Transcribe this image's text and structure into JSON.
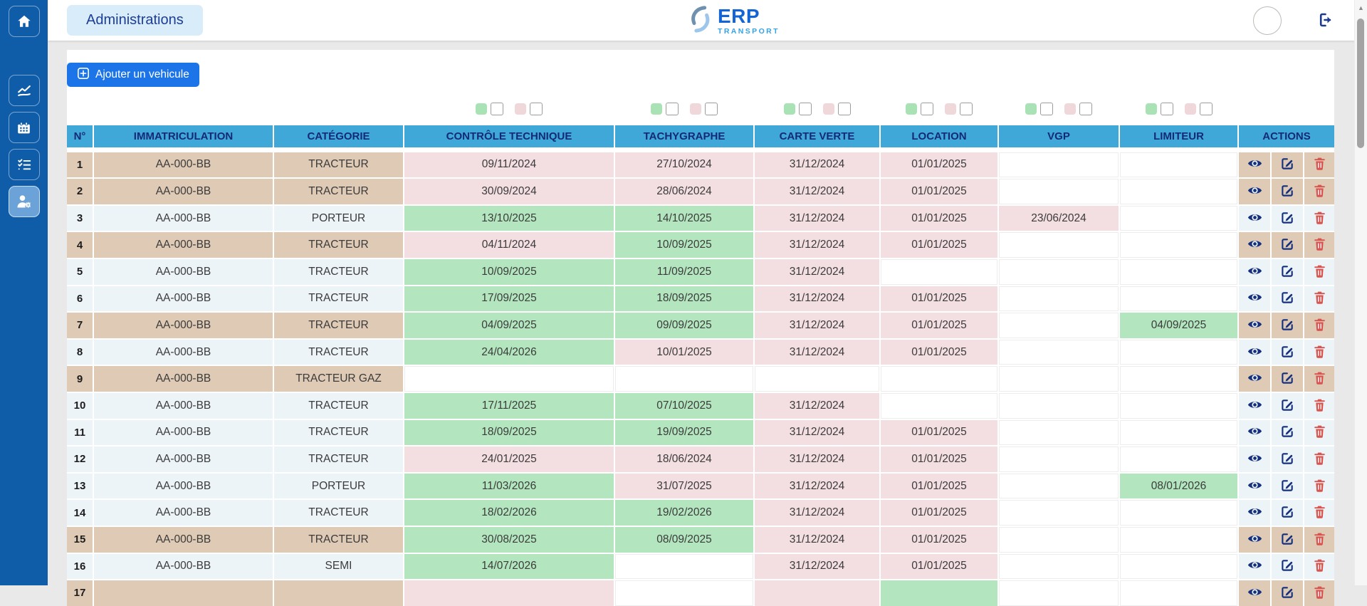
{
  "topbar": {
    "section_label": "Administrations",
    "logo": {
      "title": "ERP",
      "subtitle": "TRANSPORT",
      "swirl_icon": "swirl-logo-icon"
    },
    "avatar": "user-avatar",
    "logout_icon": "logout-icon"
  },
  "sidebar": {
    "items": [
      {
        "name": "home",
        "icon": "home-icon",
        "active": false
      },
      {
        "name": "stats",
        "icon": "chart-line-icon",
        "active": false
      },
      {
        "name": "calendar",
        "icon": "calendar-icon",
        "active": false
      },
      {
        "name": "tasks",
        "icon": "checklist-icon",
        "active": false
      },
      {
        "name": "admin-users",
        "icon": "user-gear-icon",
        "active": true
      }
    ]
  },
  "toolbar": {
    "add_vehicle_label": "Ajouter un vehicule",
    "add_icon": "plus-square-icon"
  },
  "legend": {
    "filter_columns": [
      "controle-technique",
      "tachygraphe",
      "carte-verte",
      "location",
      "vgp",
      "limiteur"
    ],
    "swatches": [
      {
        "name": "valid-green",
        "hex": "#a9e2b4"
      },
      {
        "name": "expired-pink",
        "hex": "#efd7da"
      }
    ]
  },
  "table": {
    "columns": [
      "N°",
      "IMMATRICULATION",
      "CATÉGORIE",
      "CONTRÔLE TECHNIQUE",
      "TACHYGRAPHE",
      "CARTE VERTE",
      "LOCATION",
      "VGP",
      "LIMITEUR",
      "ACTIONS"
    ],
    "action_icons": [
      "eye-icon",
      "edit-icon",
      "trash-icon"
    ],
    "rows": [
      {
        "n": "1",
        "immat": "AA-000-BB",
        "cat": "TRACTEUR",
        "tone": "tan",
        "dates": [
          {
            "v": "09/11/2024",
            "s": "p"
          },
          {
            "v": "27/10/2024",
            "s": "p"
          },
          {
            "v": "31/12/2024",
            "s": "p"
          },
          {
            "v": "01/01/2025",
            "s": "p"
          },
          {
            "v": "",
            "s": "w"
          },
          {
            "v": "",
            "s": "w"
          }
        ]
      },
      {
        "n": "2",
        "immat": "AA-000-BB",
        "cat": "TRACTEUR",
        "tone": "tan",
        "dates": [
          {
            "v": "30/09/2024",
            "s": "p"
          },
          {
            "v": "28/06/2024",
            "s": "p"
          },
          {
            "v": "31/12/2024",
            "s": "p"
          },
          {
            "v": "01/01/2025",
            "s": "p"
          },
          {
            "v": "",
            "s": "w"
          },
          {
            "v": "",
            "s": "w"
          }
        ]
      },
      {
        "n": "3",
        "immat": "AA-000-BB",
        "cat": "PORTEUR",
        "tone": "lt",
        "dates": [
          {
            "v": "13/10/2025",
            "s": "g"
          },
          {
            "v": "14/10/2025",
            "s": "g"
          },
          {
            "v": "31/12/2024",
            "s": "p"
          },
          {
            "v": "01/01/2025",
            "s": "p"
          },
          {
            "v": "23/06/2024",
            "s": "p"
          },
          {
            "v": "",
            "s": "w"
          }
        ]
      },
      {
        "n": "4",
        "immat": "AA-000-BB",
        "cat": "TRACTEUR",
        "tone": "tan",
        "dates": [
          {
            "v": "04/11/2024",
            "s": "p"
          },
          {
            "v": "10/09/2025",
            "s": "g"
          },
          {
            "v": "31/12/2024",
            "s": "p"
          },
          {
            "v": "01/01/2025",
            "s": "p"
          },
          {
            "v": "",
            "s": "w"
          },
          {
            "v": "",
            "s": "w"
          }
        ]
      },
      {
        "n": "5",
        "immat": "AA-000-BB",
        "cat": "TRACTEUR",
        "tone": "lt",
        "dates": [
          {
            "v": "10/09/2025",
            "s": "g"
          },
          {
            "v": "11/09/2025",
            "s": "g"
          },
          {
            "v": "31/12/2024",
            "s": "p"
          },
          {
            "v": "",
            "s": "w"
          },
          {
            "v": "",
            "s": "w"
          },
          {
            "v": "",
            "s": "w"
          }
        ]
      },
      {
        "n": "6",
        "immat": "AA-000-BB",
        "cat": "TRACTEUR",
        "tone": "lt",
        "dates": [
          {
            "v": "17/09/2025",
            "s": "g"
          },
          {
            "v": "18/09/2025",
            "s": "g"
          },
          {
            "v": "31/12/2024",
            "s": "p"
          },
          {
            "v": "01/01/2025",
            "s": "p"
          },
          {
            "v": "",
            "s": "w"
          },
          {
            "v": "",
            "s": "w"
          }
        ]
      },
      {
        "n": "7",
        "immat": "AA-000-BB",
        "cat": "TRACTEUR",
        "tone": "tan",
        "dates": [
          {
            "v": "04/09/2025",
            "s": "g"
          },
          {
            "v": "09/09/2025",
            "s": "g"
          },
          {
            "v": "31/12/2024",
            "s": "p"
          },
          {
            "v": "01/01/2025",
            "s": "p"
          },
          {
            "v": "",
            "s": "w"
          },
          {
            "v": "04/09/2025",
            "s": "g"
          }
        ]
      },
      {
        "n": "8",
        "immat": "AA-000-BB",
        "cat": "TRACTEUR",
        "tone": "lt",
        "dates": [
          {
            "v": "24/04/2026",
            "s": "g"
          },
          {
            "v": "10/01/2025",
            "s": "p"
          },
          {
            "v": "31/12/2024",
            "s": "p"
          },
          {
            "v": "01/01/2025",
            "s": "p"
          },
          {
            "v": "",
            "s": "w"
          },
          {
            "v": "",
            "s": "w"
          }
        ]
      },
      {
        "n": "9",
        "immat": "AA-000-BB",
        "cat": "TRACTEUR GAZ",
        "tone": "tan",
        "dates": [
          {
            "v": "",
            "s": "w"
          },
          {
            "v": "",
            "s": "w"
          },
          {
            "v": "",
            "s": "w"
          },
          {
            "v": "",
            "s": "w"
          },
          {
            "v": "",
            "s": "w"
          },
          {
            "v": "",
            "s": "w"
          }
        ]
      },
      {
        "n": "10",
        "immat": "AA-000-BB",
        "cat": "TRACTEUR",
        "tone": "lt",
        "dates": [
          {
            "v": "17/11/2025",
            "s": "g"
          },
          {
            "v": "07/10/2025",
            "s": "g"
          },
          {
            "v": "31/12/2024",
            "s": "p"
          },
          {
            "v": "",
            "s": "w"
          },
          {
            "v": "",
            "s": "w"
          },
          {
            "v": "",
            "s": "w"
          }
        ]
      },
      {
        "n": "11",
        "immat": "AA-000-BB",
        "cat": "TRACTEUR",
        "tone": "lt",
        "dates": [
          {
            "v": "18/09/2025",
            "s": "g"
          },
          {
            "v": "19/09/2025",
            "s": "g"
          },
          {
            "v": "31/12/2024",
            "s": "p"
          },
          {
            "v": "01/01/2025",
            "s": "p"
          },
          {
            "v": "",
            "s": "w"
          },
          {
            "v": "",
            "s": "w"
          }
        ]
      },
      {
        "n": "12",
        "immat": "AA-000-BB",
        "cat": "TRACTEUR",
        "tone": "lt",
        "dates": [
          {
            "v": "24/01/2025",
            "s": "p"
          },
          {
            "v": "18/06/2024",
            "s": "p"
          },
          {
            "v": "31/12/2024",
            "s": "p"
          },
          {
            "v": "01/01/2025",
            "s": "p"
          },
          {
            "v": "",
            "s": "w"
          },
          {
            "v": "",
            "s": "w"
          }
        ]
      },
      {
        "n": "13",
        "immat": "AA-000-BB",
        "cat": "PORTEUR",
        "tone": "lt",
        "dates": [
          {
            "v": "11/03/2026",
            "s": "g"
          },
          {
            "v": "31/07/2025",
            "s": "p"
          },
          {
            "v": "31/12/2024",
            "s": "p"
          },
          {
            "v": "01/01/2025",
            "s": "p"
          },
          {
            "v": "",
            "s": "w"
          },
          {
            "v": "08/01/2026",
            "s": "g"
          }
        ]
      },
      {
        "n": "14",
        "immat": "AA-000-BB",
        "cat": "TRACTEUR",
        "tone": "lt",
        "dates": [
          {
            "v": "18/02/2026",
            "s": "g"
          },
          {
            "v": "19/02/2026",
            "s": "g"
          },
          {
            "v": "31/12/2024",
            "s": "p"
          },
          {
            "v": "01/01/2025",
            "s": "p"
          },
          {
            "v": "",
            "s": "w"
          },
          {
            "v": "",
            "s": "w"
          }
        ]
      },
      {
        "n": "15",
        "immat": "AA-000-BB",
        "cat": "TRACTEUR",
        "tone": "tan",
        "dates": [
          {
            "v": "30/08/2025",
            "s": "g"
          },
          {
            "v": "08/09/2025",
            "s": "g"
          },
          {
            "v": "31/12/2024",
            "s": "p"
          },
          {
            "v": "01/01/2025",
            "s": "p"
          },
          {
            "v": "",
            "s": "w"
          },
          {
            "v": "",
            "s": "w"
          }
        ]
      },
      {
        "n": "16",
        "immat": "AA-000-BB",
        "cat": "SEMI",
        "tone": "lt",
        "dates": [
          {
            "v": "14/07/2026",
            "s": "g"
          },
          {
            "v": "",
            "s": "w"
          },
          {
            "v": "31/12/2024",
            "s": "p"
          },
          {
            "v": "01/01/2025",
            "s": "p"
          },
          {
            "v": "",
            "s": "w"
          },
          {
            "v": "",
            "s": "w"
          }
        ]
      },
      {
        "n": "17",
        "immat": "",
        "cat": "",
        "tone": "tan",
        "dates": [
          {
            "v": "",
            "s": "p"
          },
          {
            "v": "",
            "s": "w"
          },
          {
            "v": "",
            "s": "p"
          },
          {
            "v": "",
            "s": "g"
          },
          {
            "v": "",
            "s": "w"
          },
          {
            "v": "",
            "s": "w"
          }
        ]
      }
    ]
  },
  "colors": {
    "sidebar_blue": "#0f5ca8",
    "accent_blue": "#1b74e8",
    "header_blue": "#3fa8d8",
    "header_text_navy": "#142a78",
    "valid_green": "#b3e6bf",
    "expired_pink": "#f3dee1",
    "row_tan": "#decab5",
    "row_light": "#edf4f8",
    "icon_navy": "#15317e",
    "danger_red": "#d9534f"
  }
}
